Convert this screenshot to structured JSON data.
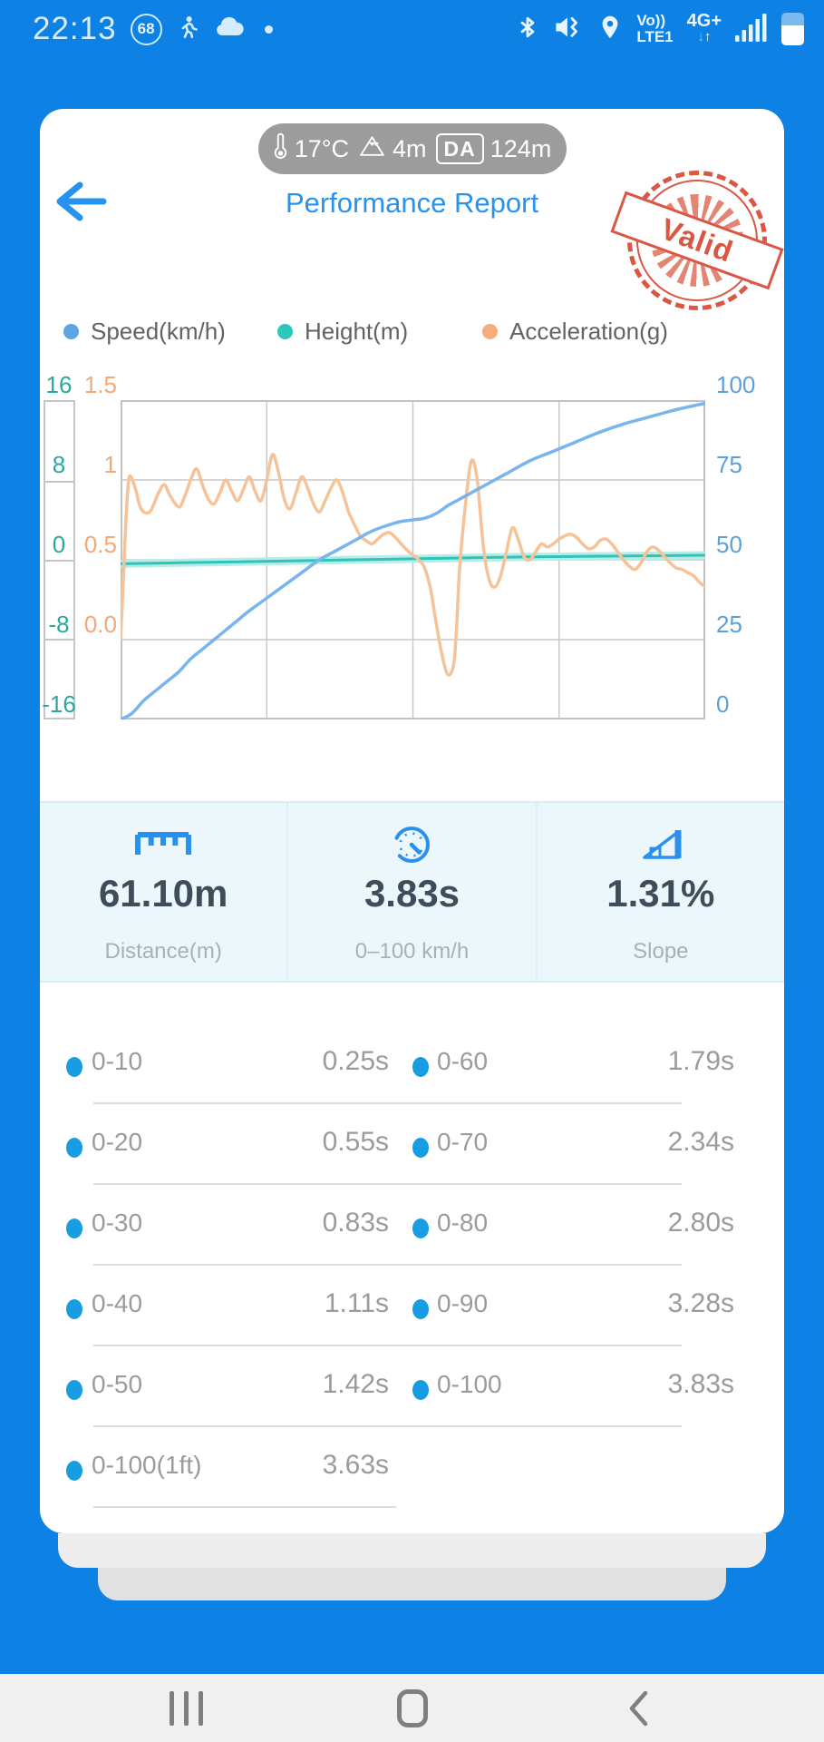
{
  "status_bar": {
    "time": "22:13",
    "battery_badge": "68",
    "network_label_line1": "Vo))",
    "network_label_line2": "LTE1",
    "network_type": "4G+",
    "arrows_down": "↓",
    "arrows_up": "↑"
  },
  "conditions_pill": {
    "temperature": "17°C",
    "elevation": "4m",
    "da_badge": "DA",
    "density_altitude": "124m"
  },
  "header": {
    "title": "Performance Report",
    "stamp_text": "Valid",
    "stamp_color": "#d95743",
    "title_color": "#2693f0"
  },
  "legend": [
    {
      "label": "Speed(km/h)",
      "color": "#5fa3e7"
    },
    {
      "label": "Height(m)",
      "color": "#2bc8ba"
    },
    {
      "label": "Acceleration(g)",
      "color": "#f5ad7d"
    }
  ],
  "chart_data": {
    "type": "line",
    "title": "",
    "xlabel": "",
    "grid": {
      "v_divisions": 4,
      "h_divisions": 4,
      "line_color": "#c9c9c9"
    },
    "axes": [
      {
        "name": "height-left",
        "unit": "m",
        "labels": [
          "16",
          "8",
          "0",
          "-8",
          "-16"
        ],
        "range": [
          16,
          -16
        ],
        "color": "#2aa89e"
      },
      {
        "name": "acceleration-left",
        "unit": "g",
        "labels": [
          "1.5",
          "1",
          "0.5",
          "0.0"
        ],
        "range": [
          1.5,
          -0.5
        ],
        "color": "#f2a878"
      },
      {
        "name": "speed-right",
        "unit": "km/h",
        "labels": [
          "100",
          "75",
          "50",
          "25",
          "0"
        ],
        "range": [
          100,
          0
        ],
        "color": "#5d9fd9"
      }
    ],
    "series": [
      {
        "name": "Height(m)",
        "axis": "height-left",
        "color": "#2cc5b8",
        "band_color": "#b9ece6",
        "width": 3,
        "points": [
          [
            0,
            -0.4
          ],
          [
            10,
            -0.3
          ],
          [
            20,
            -0.2
          ],
          [
            30,
            -0.1
          ],
          [
            40,
            0
          ],
          [
            50,
            0.1
          ],
          [
            60,
            0.2
          ],
          [
            70,
            0.3
          ],
          [
            80,
            0.35
          ],
          [
            90,
            0.4
          ],
          [
            100,
            0.45
          ]
        ]
      },
      {
        "name": "Acceleration(g)",
        "axis": "acceleration-left",
        "color": "#f6c298",
        "width": 3.5,
        "points": [
          [
            0,
            0.0
          ],
          [
            0.5,
            0.4
          ],
          [
            1,
            0.8
          ],
          [
            1.5,
            1.02
          ],
          [
            2.5,
            0.95
          ],
          [
            3.5,
            0.82
          ],
          [
            5,
            0.8
          ],
          [
            6.5,
            0.92
          ],
          [
            7.5,
            0.97
          ],
          [
            8.5,
            0.9
          ],
          [
            10,
            0.83
          ],
          [
            11,
            0.9
          ],
          [
            12,
            1.0
          ],
          [
            13,
            1.07
          ],
          [
            14,
            0.97
          ],
          [
            15,
            0.88
          ],
          [
            16,
            0.85
          ],
          [
            17,
            0.92
          ],
          [
            18,
            1.0
          ],
          [
            19,
            0.93
          ],
          [
            20,
            0.87
          ],
          [
            21,
            0.94
          ],
          [
            22,
            1.02
          ],
          [
            23,
            0.93
          ],
          [
            24,
            0.87
          ],
          [
            25,
            1.0
          ],
          [
            26,
            1.16
          ],
          [
            27,
            1.05
          ],
          [
            28,
            0.88
          ],
          [
            29,
            0.82
          ],
          [
            30,
            0.92
          ],
          [
            31,
            1.02
          ],
          [
            32,
            0.95
          ],
          [
            33,
            0.85
          ],
          [
            34,
            0.8
          ],
          [
            35,
            0.87
          ],
          [
            36,
            0.95
          ],
          [
            37,
            1.0
          ],
          [
            38,
            0.92
          ],
          [
            39,
            0.8
          ],
          [
            40,
            0.72
          ],
          [
            41,
            0.65
          ],
          [
            42,
            0.62
          ],
          [
            43,
            0.6
          ],
          [
            44,
            0.63
          ],
          [
            45,
            0.66
          ],
          [
            46,
            0.67
          ],
          [
            47,
            0.64
          ],
          [
            48,
            0.6
          ],
          [
            49,
            0.56
          ],
          [
            50,
            0.53
          ],
          [
            51,
            0.5
          ],
          [
            52,
            0.45
          ],
          [
            53,
            0.32
          ],
          [
            54,
            0.1
          ],
          [
            55,
            -0.1
          ],
          [
            56,
            -0.22
          ],
          [
            57,
            -0.15
          ],
          [
            57.5,
            0.1
          ],
          [
            58,
            0.45
          ],
          [
            59,
            0.85
          ],
          [
            60,
            1.12
          ],
          [
            61,
            1.0
          ],
          [
            62,
            0.6
          ],
          [
            63,
            0.38
          ],
          [
            64,
            0.33
          ],
          [
            65,
            0.4
          ],
          [
            66,
            0.55
          ],
          [
            67,
            0.7
          ],
          [
            68,
            0.63
          ],
          [
            69,
            0.52
          ],
          [
            70,
            0.5
          ],
          [
            71,
            0.55
          ],
          [
            72,
            0.6
          ],
          [
            73,
            0.58
          ],
          [
            74,
            0.6
          ],
          [
            75,
            0.63
          ],
          [
            76,
            0.65
          ],
          [
            77,
            0.66
          ],
          [
            78,
            0.64
          ],
          [
            79,
            0.6
          ],
          [
            80,
            0.57
          ],
          [
            81,
            0.58
          ],
          [
            82,
            0.62
          ],
          [
            83,
            0.63
          ],
          [
            84,
            0.6
          ],
          [
            85,
            0.55
          ],
          [
            86,
            0.5
          ],
          [
            87,
            0.46
          ],
          [
            88,
            0.44
          ],
          [
            89,
            0.48
          ],
          [
            90,
            0.55
          ],
          [
            91,
            0.58
          ],
          [
            92,
            0.56
          ],
          [
            93,
            0.52
          ],
          [
            94,
            0.48
          ],
          [
            95,
            0.45
          ],
          [
            96,
            0.44
          ],
          [
            97,
            0.42
          ],
          [
            98,
            0.4
          ],
          [
            99,
            0.36
          ],
          [
            100,
            0.33
          ]
        ]
      },
      {
        "name": "Speed(km/h)",
        "axis": "speed-right",
        "color": "#79b5ec",
        "width": 3.5,
        "points": [
          [
            0,
            0
          ],
          [
            2,
            2
          ],
          [
            4,
            6
          ],
          [
            6,
            9
          ],
          [
            8,
            12
          ],
          [
            10,
            15
          ],
          [
            12,
            19
          ],
          [
            14,
            22
          ],
          [
            16,
            25
          ],
          [
            18,
            28
          ],
          [
            20,
            31
          ],
          [
            22,
            34
          ],
          [
            25,
            38
          ],
          [
            28,
            42
          ],
          [
            31,
            46
          ],
          [
            34,
            50
          ],
          [
            37,
            53
          ],
          [
            40,
            56
          ],
          [
            43,
            59
          ],
          [
            46,
            61
          ],
          [
            48,
            62
          ],
          [
            50,
            62.5
          ],
          [
            52,
            63
          ],
          [
            54,
            64.5
          ],
          [
            56,
            67
          ],
          [
            58,
            69
          ],
          [
            60,
            71
          ],
          [
            63,
            74
          ],
          [
            66,
            77
          ],
          [
            70,
            81
          ],
          [
            74,
            84
          ],
          [
            78,
            87
          ],
          [
            82,
            90
          ],
          [
            86,
            92.5
          ],
          [
            90,
            94.5
          ],
          [
            95,
            97
          ],
          [
            100,
            99
          ]
        ]
      }
    ]
  },
  "stats": [
    {
      "value": "61.10m",
      "label": "Distance(m)"
    },
    {
      "value": "3.83s",
      "label": "0–100 km/h"
    },
    {
      "value": "1.31%",
      "label": "Slope"
    }
  ],
  "splits": {
    "rows": [
      {
        "left_label": "0-10",
        "left_value": "0.25s",
        "right_label": "0-60",
        "right_value": "1.79s"
      },
      {
        "left_label": "0-20",
        "left_value": "0.55s",
        "right_label": "0-70",
        "right_value": "2.34s"
      },
      {
        "left_label": "0-30",
        "left_value": "0.83s",
        "right_label": "0-80",
        "right_value": "2.80s"
      },
      {
        "left_label": "0-40",
        "left_value": "1.11s",
        "right_label": "0-90",
        "right_value": "3.28s"
      },
      {
        "left_label": "0-50",
        "left_value": "1.42s",
        "right_label": "0-100",
        "right_value": "3.83s"
      },
      {
        "left_label": "0-100(1ft)",
        "left_value": "3.63s"
      }
    ]
  }
}
